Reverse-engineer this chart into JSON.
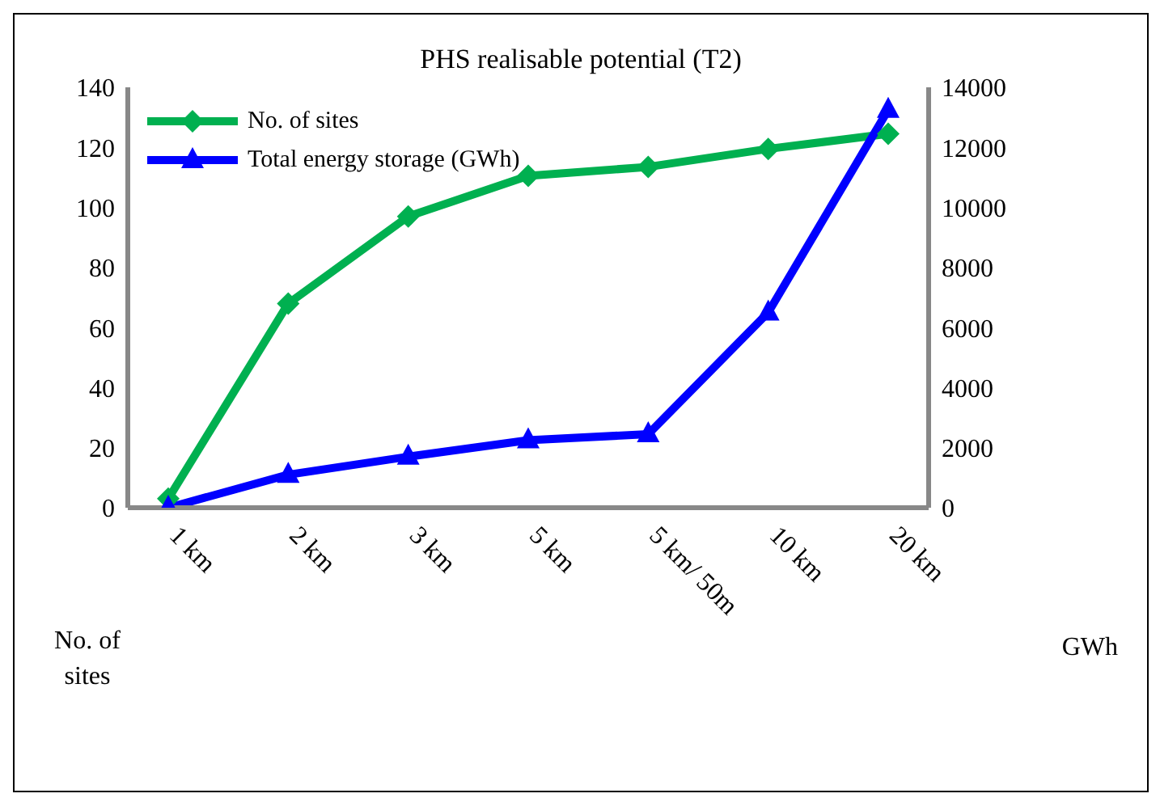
{
  "chart_data": {
    "type": "line",
    "title": "PHS realisable  potential (T2)",
    "ylabel": "No. of sites",
    "y2label": "GWh",
    "categories": [
      "1 km",
      "2 km",
      "3 km",
      "5 km",
      "5 km/ 50m",
      "10 km",
      "20 km"
    ],
    "series": [
      {
        "name": "No. of sites",
        "color": "#00b050",
        "marker": "diamond",
        "values": [
          3,
          68,
          97,
          110.5,
          113.5,
          119.5,
          124.5
        ]
      },
      {
        "name": "Total energy storage (GWh)",
        "color": "#0000ff",
        "marker": "triangle",
        "axis": "y2",
        "values": [
          0,
          1100,
          1700,
          2250,
          2450,
          6500,
          13250
        ]
      }
    ],
    "ylim": [
      0,
      140
    ],
    "yticks": [
      0,
      20,
      40,
      60,
      80,
      100,
      120,
      140
    ],
    "y2lim": [
      0,
      14000
    ],
    "y2ticks": [
      0,
      2000,
      4000,
      6000,
      8000,
      10000,
      12000,
      14000
    ],
    "grid": false,
    "legend": "top left",
    "line_style": "solid"
  }
}
